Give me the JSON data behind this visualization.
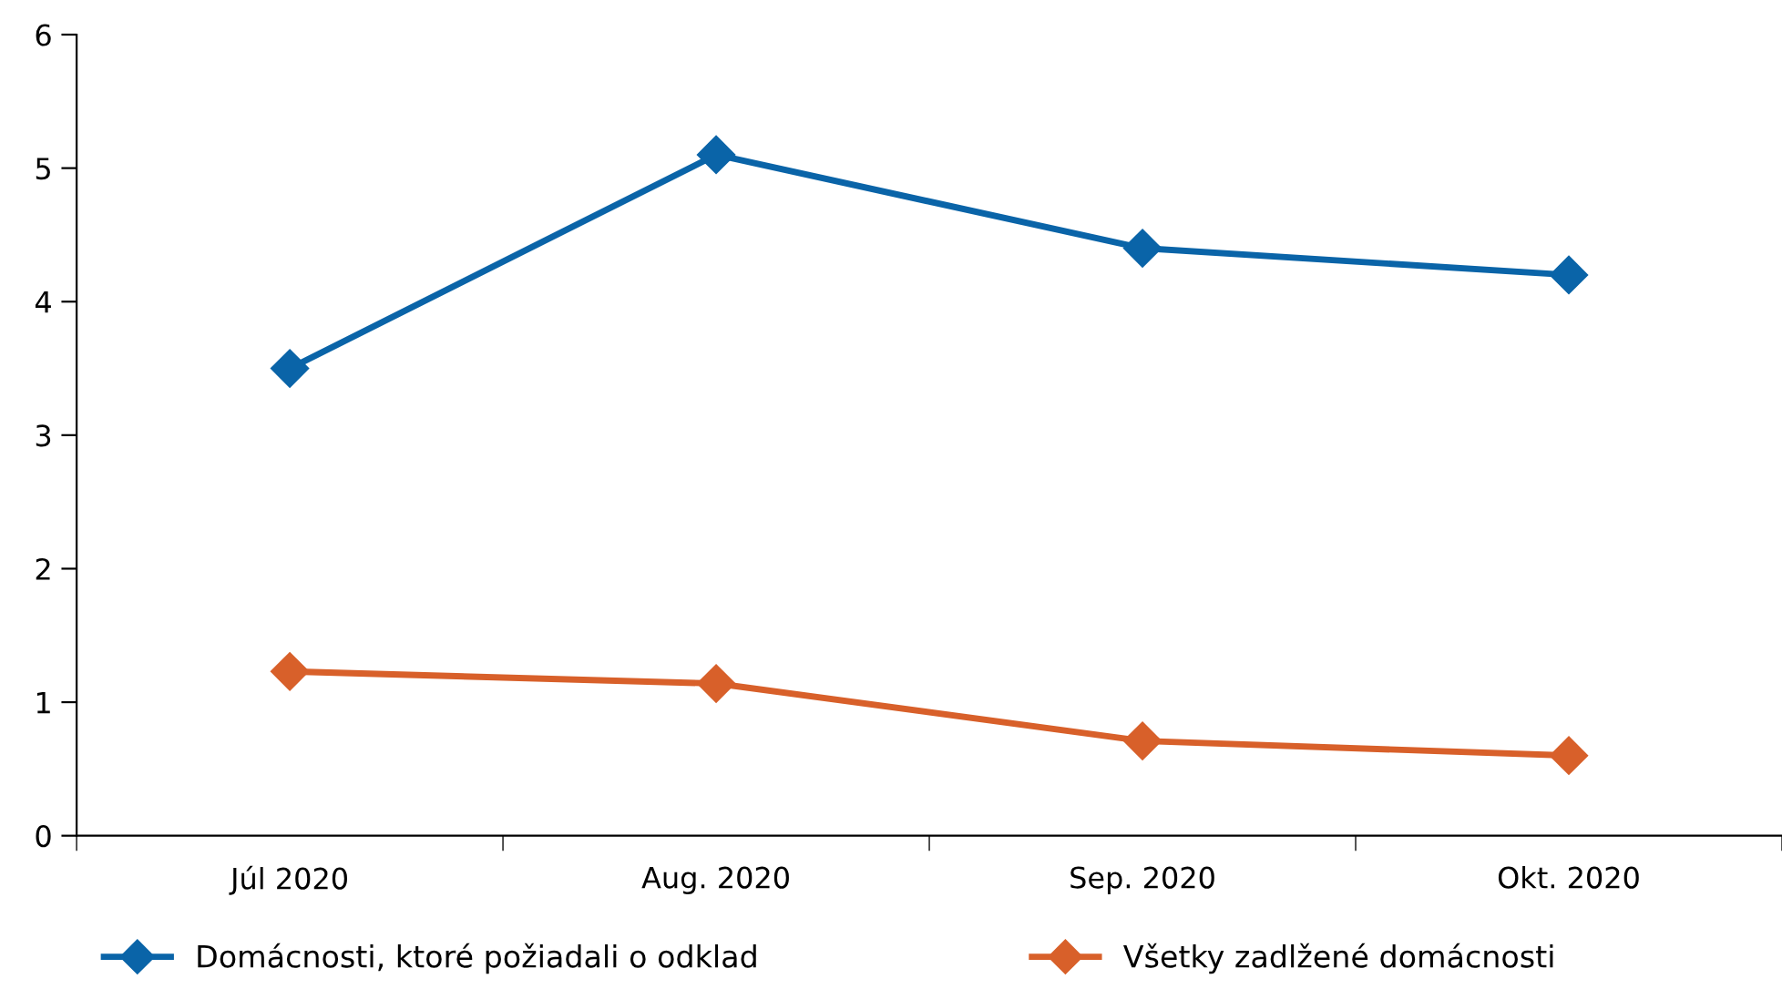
{
  "chart_data": {
    "type": "line",
    "categories": [
      "Júl 2020",
      "Aug. 2020",
      "Sep. 2020",
      "Okt. 2020"
    ],
    "series": [
      {
        "name": "Domácnosti, ktoré požiadali o odklad",
        "color": "#0a64a8",
        "values": [
          3.5,
          5.1,
          4.4,
          4.2
        ]
      },
      {
        "name": "Všetky zadlžené domácnosti",
        "color": "#d8602a",
        "values": [
          1.23,
          1.14,
          0.71,
          0.6
        ]
      }
    ],
    "ylim": [
      0,
      6
    ],
    "yticks": [
      0,
      1,
      2,
      3,
      4,
      5,
      6
    ],
    "grid": false,
    "legend": "bottom",
    "marker": "diamond",
    "line_style": "solid"
  }
}
